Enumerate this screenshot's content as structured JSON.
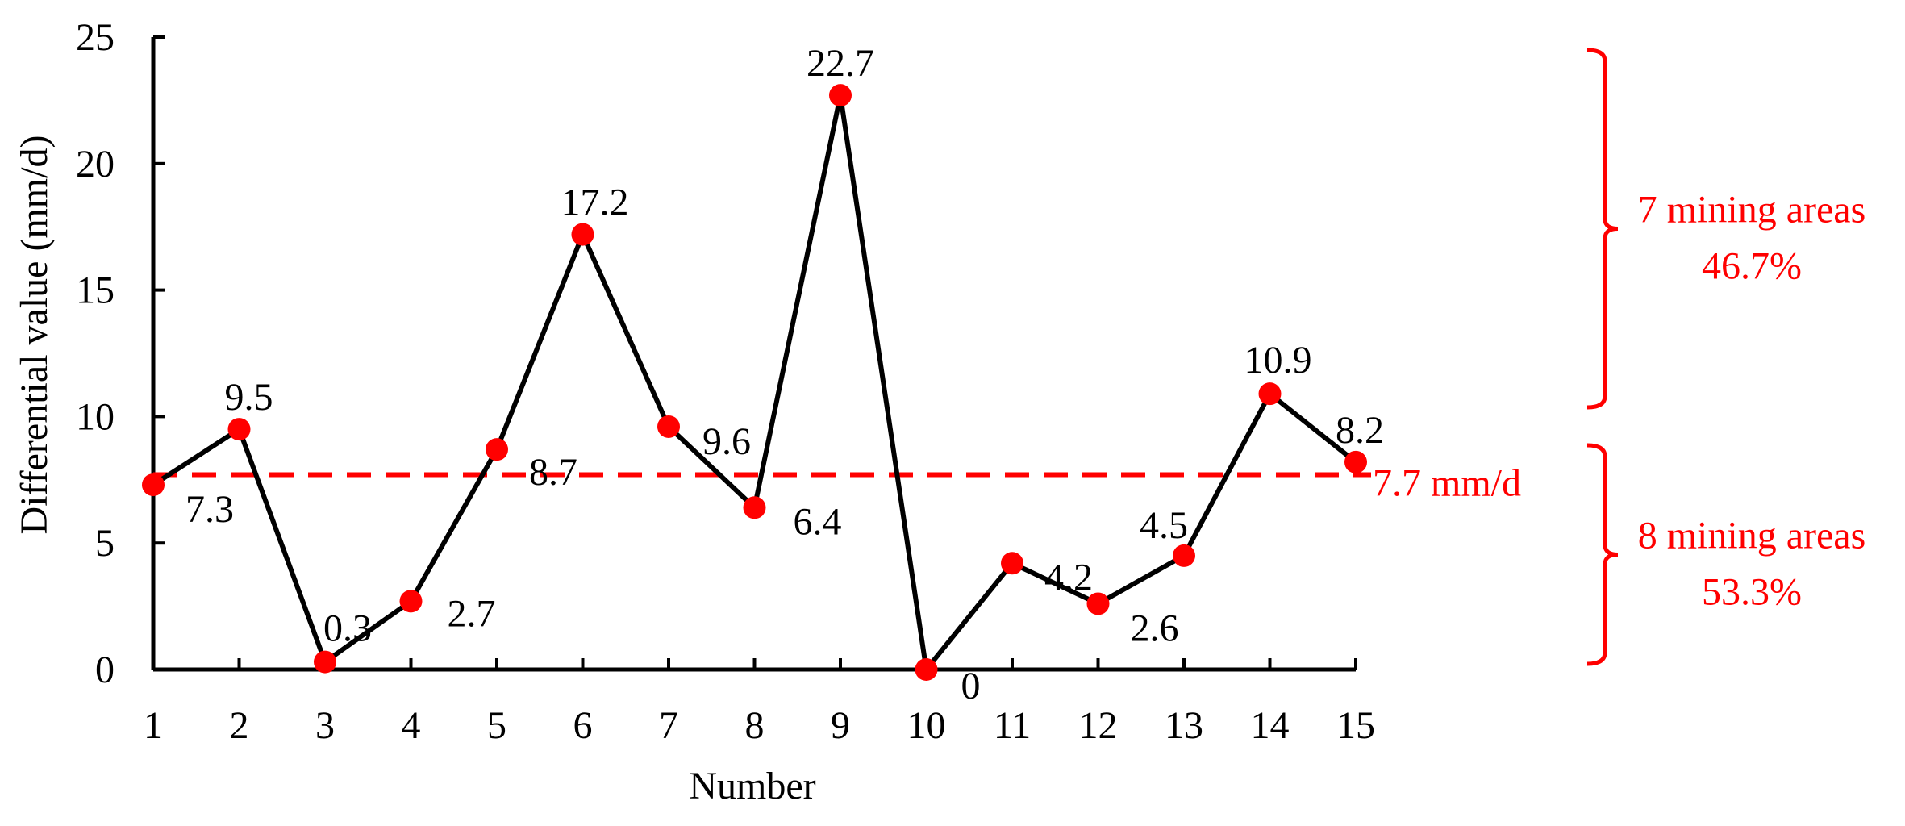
{
  "chart_data": {
    "type": "line",
    "xlabel": "Number",
    "ylabel": "Differential value (mm/d)",
    "x": [
      1,
      2,
      3,
      4,
      5,
      6,
      7,
      8,
      9,
      10,
      11,
      12,
      13,
      14,
      15
    ],
    "values": [
      7.3,
      9.5,
      0.3,
      2.7,
      8.7,
      17.2,
      9.6,
      6.4,
      22.7,
      0,
      4.2,
      2.6,
      4.5,
      10.9,
      8.2
    ],
    "data_labels": [
      "7.3",
      "9.5",
      "0.3",
      "2.7",
      "8.7",
      "17.2",
      "9.6",
      "6.4",
      "22.7",
      "0",
      "4.2",
      "2.6",
      "4.5",
      "10.9",
      "8.2"
    ],
    "ylim": [
      0,
      25
    ],
    "y_ticks": [
      "0",
      "5",
      "10",
      "15",
      "20",
      "25"
    ],
    "x_ticks": [
      "1",
      "2",
      "3",
      "4",
      "5",
      "6",
      "7",
      "8",
      "9",
      "10",
      "11",
      "12",
      "13",
      "14",
      "15"
    ],
    "grid": false,
    "reference_line": {
      "value": 7.7,
      "label": "7.7 mm/d"
    },
    "annotations": [
      {
        "text_lines": [
          "7 mining areas",
          "46.7%"
        ],
        "range": "above"
      },
      {
        "text_lines": [
          "8 mining areas",
          "53.3%"
        ],
        "range": "below"
      }
    ],
    "colors": {
      "line": "#000000",
      "marker": "#ff0000",
      "reference": "#ff0000",
      "annotation": "#ff0000"
    }
  }
}
